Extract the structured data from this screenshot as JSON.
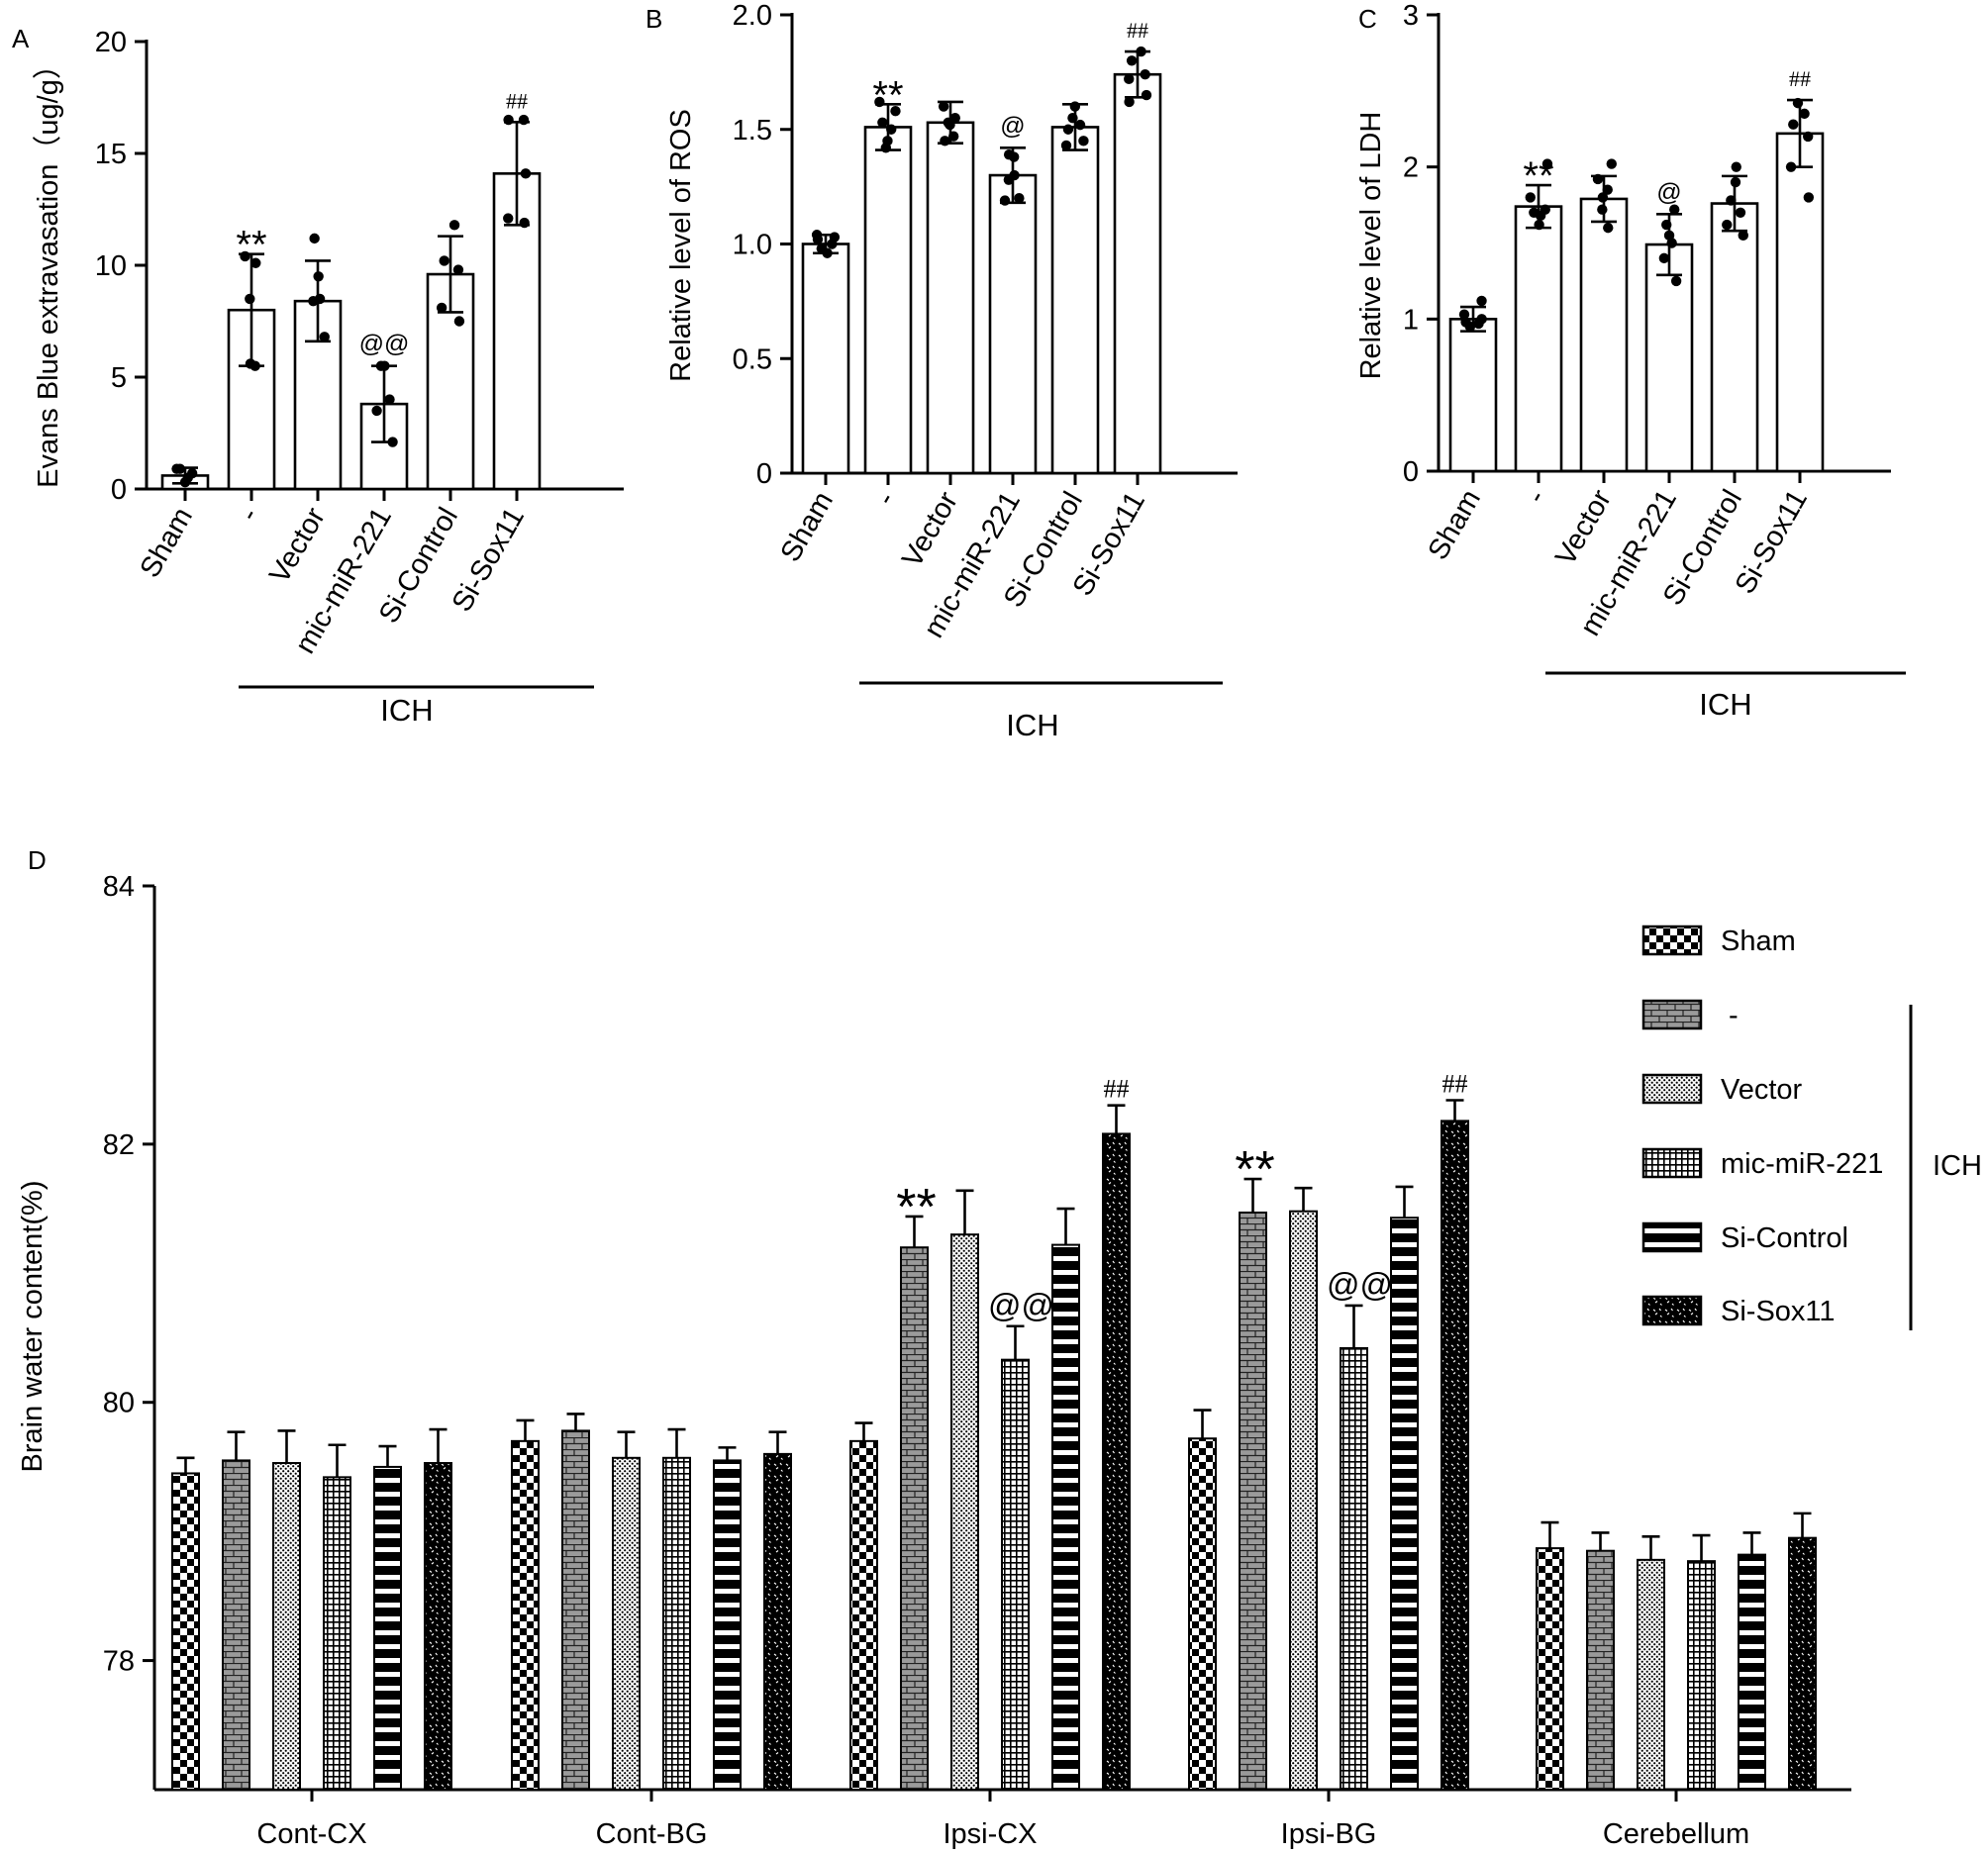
{
  "chart_data": [
    {
      "panel": "A",
      "type": "bar",
      "ylabel": "Evans Blue extravasation（ug/g）",
      "ylim": [
        0,
        20
      ],
      "yticks": [
        "0",
        "5",
        "10",
        "15",
        "20"
      ],
      "categories": [
        "Sham",
        "-",
        "Vector",
        "mic-miR-221",
        "Si-Control",
        "Si-Sox11"
      ],
      "values": [
        0.6,
        8.0,
        8.4,
        3.8,
        9.6,
        14.1
      ],
      "errors": [
        0.35,
        2.5,
        1.8,
        1.7,
        1.7,
        2.3
      ],
      "points": [
        [
          0.3,
          0.5,
          0.9,
          0.7,
          0.9
        ],
        [
          5.5,
          5.6,
          8.5,
          10.1,
          10.4
        ],
        [
          6.8,
          8.4,
          8.5,
          9.5,
          11.2
        ],
        [
          2.1,
          3.5,
          4.0,
          5.5,
          5.5
        ],
        [
          7.5,
          8.1,
          9.8,
          10.2,
          11.8
        ],
        [
          11.9,
          12.1,
          14.1,
          16.5,
          16.5
        ]
      ],
      "annotations": [
        "",
        "**",
        "",
        "@@",
        "",
        "##"
      ],
      "group_label": "ICH"
    },
    {
      "panel": "B",
      "type": "bar",
      "ylabel": "Relative level of ROS",
      "ylim": [
        0,
        2.0
      ],
      "yticks": [
        "0",
        "0.5",
        "1.0",
        "1.5",
        "2.0"
      ],
      "categories": [
        "Sham",
        "-",
        "Vector",
        "mic-miR-221",
        "Si-Control",
        "Si-Sox11"
      ],
      "values": [
        1.0,
        1.51,
        1.53,
        1.3,
        1.51,
        1.74
      ],
      "errors": [
        0.04,
        0.1,
        0.09,
        0.12,
        0.1,
        0.1
      ],
      "points": [
        [
          0.96,
          0.98,
          1.0,
          1.02,
          1.03,
          1.04
        ],
        [
          1.42,
          1.45,
          1.5,
          1.53,
          1.58,
          1.62
        ],
        [
          1.45,
          1.47,
          1.52,
          1.53,
          1.55,
          1.6
        ],
        [
          1.19,
          1.2,
          1.28,
          1.3,
          1.38,
          1.39
        ],
        [
          1.43,
          1.45,
          1.5,
          1.52,
          1.55,
          1.6
        ],
        [
          1.62,
          1.65,
          1.72,
          1.74,
          1.8,
          1.84
        ]
      ],
      "annotations": [
        "",
        "**",
        "",
        "@",
        "",
        "##"
      ],
      "group_label": "ICH"
    },
    {
      "panel": "C",
      "type": "bar",
      "ylabel": "Relative level of LDH",
      "ylim": [
        0,
        3
      ],
      "yticks": [
        "0",
        "1",
        "2",
        "3"
      ],
      "categories": [
        "Sham",
        "-",
        "Vector",
        "mic-miR-221",
        "Si-Control",
        "Si-Sox11"
      ],
      "values": [
        1.0,
        1.74,
        1.79,
        1.49,
        1.76,
        2.22
      ],
      "errors": [
        0.08,
        0.14,
        0.15,
        0.2,
        0.18,
        0.22
      ],
      "points": [
        [
          0.95,
          0.97,
          0.98,
          1.0,
          1.03,
          1.12
        ],
        [
          1.62,
          1.68,
          1.7,
          1.72,
          1.8,
          2.02
        ],
        [
          1.6,
          1.72,
          1.8,
          1.85,
          1.92,
          2.02
        ],
        [
          1.25,
          1.4,
          1.5,
          1.55,
          1.62,
          1.72
        ],
        [
          1.55,
          1.62,
          1.7,
          1.78,
          1.9,
          2.0
        ],
        [
          1.8,
          2.0,
          2.2,
          2.28,
          2.35,
          2.42
        ]
      ],
      "annotations": [
        "",
        "**",
        "",
        "@",
        "",
        "##"
      ],
      "group_label": "ICH"
    },
    {
      "panel": "D",
      "type": "bar",
      "ylabel": "Brain water content(%)",
      "ylim": [
        77,
        84
      ],
      "yticks": [
        "78",
        "80",
        "82",
        "84"
      ],
      "categories": [
        "Cont-CX",
        "Cont-BG",
        "Ipsi-CX",
        "Ipsi-BG",
        "Cerebellum"
      ],
      "series": [
        {
          "name": "Sham",
          "pattern": "checker",
          "values": [
            79.45,
            79.7,
            79.7,
            79.72,
            78.87
          ],
          "errors": [
            0.12,
            0.16,
            0.14,
            0.22,
            0.2
          ]
        },
        {
          "name": "-",
          "pattern": "brick",
          "values": [
            79.55,
            79.78,
            81.2,
            81.47,
            78.85
          ],
          "errors": [
            0.22,
            0.13,
            0.24,
            0.26,
            0.14
          ]
        },
        {
          "name": "Vector",
          "pattern": "dots",
          "values": [
            79.53,
            79.57,
            81.3,
            81.48,
            78.78
          ],
          "errors": [
            0.25,
            0.2,
            0.34,
            0.18,
            0.18
          ]
        },
        {
          "name": "mic-miR-221",
          "pattern": "grid",
          "values": [
            79.42,
            79.57,
            80.33,
            80.42,
            78.77
          ],
          "errors": [
            0.25,
            0.22,
            0.26,
            0.33,
            0.2
          ]
        },
        {
          "name": "Si-Control",
          "pattern": "stripes",
          "values": [
            79.5,
            79.55,
            81.22,
            81.43,
            78.82
          ],
          "errors": [
            0.16,
            0.1,
            0.28,
            0.24,
            0.17
          ]
        },
        {
          "name": "Si-Sox11",
          "pattern": "confetti",
          "values": [
            79.53,
            79.6,
            82.08,
            82.18,
            78.95
          ],
          "errors": [
            0.26,
            0.17,
            0.22,
            0.16,
            0.19
          ]
        }
      ],
      "annotations": [
        {
          "category": "Ipsi-CX",
          "series": "-",
          "text": "**"
        },
        {
          "category": "Ipsi-CX",
          "series": "mic-miR-221",
          "text": "@@"
        },
        {
          "category": "Ipsi-CX",
          "series": "Si-Sox11",
          "text": "##"
        },
        {
          "category": "Ipsi-BG",
          "series": "-",
          "text": "**"
        },
        {
          "category": "Ipsi-BG",
          "series": "mic-miR-221",
          "text": "@@"
        },
        {
          "category": "Ipsi-BG",
          "series": "Si-Sox11",
          "text": "##"
        }
      ],
      "legend_position": "top-right",
      "legend_group_label": "ICH"
    }
  ]
}
